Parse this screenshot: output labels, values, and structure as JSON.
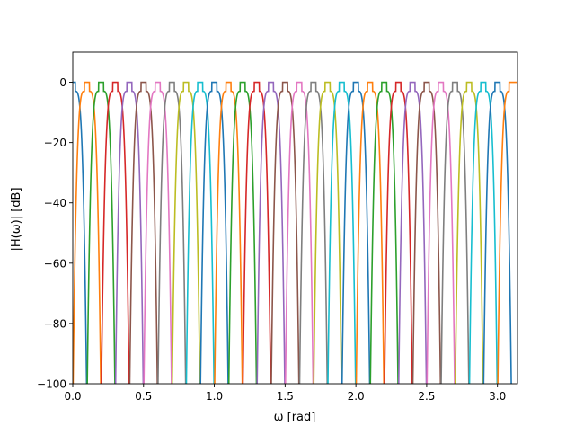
{
  "chart_data": {
    "type": "line",
    "title": "",
    "xlabel": "ω [rad]",
    "ylabel": "|H(ω)| [dB]",
    "xlim": [
      0,
      3.14159
    ],
    "ylim": [
      -100,
      10
    ],
    "xticks": [
      0.0,
      0.5,
      1.0,
      1.5,
      2.0,
      2.5,
      3.0
    ],
    "xtick_labels": [
      "0.0",
      "0.5",
      "1.0",
      "1.5",
      "2.0",
      "2.5",
      "3.0"
    ],
    "yticks": [
      0,
      -20,
      -40,
      -60,
      -80,
      -100
    ],
    "ytick_labels": [
      "0",
      "−20",
      "−40",
      "−60",
      "−80",
      "−100"
    ],
    "grid": false,
    "legend": "none",
    "band_edge_spacing_rad": 0.1,
    "series": [
      {
        "color": "#1f77b4",
        "passband": [
          0.0,
          0.0
        ]
      },
      {
        "color": "#ff7f0e",
        "passband": [
          0.1,
          0.1
        ]
      },
      {
        "color": "#2ca02c",
        "passband": [
          0.2,
          0.2
        ]
      },
      {
        "color": "#d62728",
        "passband": [
          0.3,
          0.3
        ]
      },
      {
        "color": "#9467bd",
        "passband": [
          0.4,
          0.4
        ]
      },
      {
        "color": "#8c564b",
        "passband": [
          0.5,
          0.5
        ]
      },
      {
        "color": "#e377c2",
        "passband": [
          0.6,
          0.6
        ]
      },
      {
        "color": "#7f7f7f",
        "passband": [
          0.7,
          0.7
        ]
      },
      {
        "color": "#bcbd22",
        "passband": [
          0.8,
          0.8
        ]
      },
      {
        "color": "#17becf",
        "passband": [
          0.9,
          0.9
        ]
      },
      {
        "color": "#1f77b4",
        "passband": [
          1.0,
          1.0
        ]
      },
      {
        "color": "#ff7f0e",
        "passband": [
          1.1,
          1.1
        ]
      },
      {
        "color": "#2ca02c",
        "passband": [
          1.2,
          1.2
        ]
      },
      {
        "color": "#d62728",
        "passband": [
          1.3,
          1.3
        ]
      },
      {
        "color": "#9467bd",
        "passband": [
          1.4,
          1.4
        ]
      },
      {
        "color": "#8c564b",
        "passband": [
          1.5,
          1.5
        ]
      },
      {
        "color": "#e377c2",
        "passband": [
          1.6,
          1.6
        ]
      },
      {
        "color": "#7f7f7f",
        "passband": [
          1.7,
          1.7
        ]
      },
      {
        "color": "#bcbd22",
        "passband": [
          1.8,
          1.8
        ]
      },
      {
        "color": "#17becf",
        "passband": [
          1.9,
          1.9
        ]
      },
      {
        "color": "#1f77b4",
        "passband": [
          2.0,
          2.0
        ]
      },
      {
        "color": "#ff7f0e",
        "passband": [
          2.1,
          2.1
        ]
      },
      {
        "color": "#2ca02c",
        "passband": [
          2.2,
          2.2
        ]
      },
      {
        "color": "#d62728",
        "passband": [
          2.3,
          2.3
        ]
      },
      {
        "color": "#9467bd",
        "passband": [
          2.4,
          2.4
        ]
      },
      {
        "color": "#8c564b",
        "passband": [
          2.5,
          2.5
        ]
      },
      {
        "color": "#e377c2",
        "passband": [
          2.6,
          2.6
        ]
      },
      {
        "color": "#7f7f7f",
        "passband": [
          2.7,
          2.7
        ]
      },
      {
        "color": "#bcbd22",
        "passband": [
          2.8,
          2.8
        ]
      },
      {
        "color": "#17becf",
        "passband": [
          2.9,
          2.9
        ]
      },
      {
        "color": "#1f77b4",
        "passband": [
          3.0,
          3.0
        ]
      },
      {
        "color": "#ff7f0e",
        "passband": [
          3.1,
          3.14159
        ]
      }
    ]
  }
}
